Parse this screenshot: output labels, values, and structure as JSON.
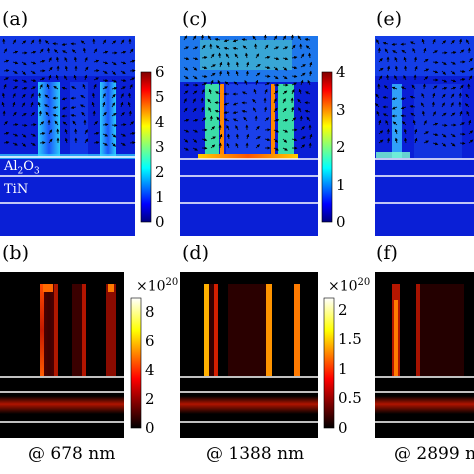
{
  "panels": [
    {
      "id": "a",
      "label": "(a)",
      "kind": "field",
      "wavelength_label": "",
      "materials": [
        "Al2O3",
        "TiN"
      ]
    },
    {
      "id": "c",
      "label": "(c)",
      "kind": "field",
      "wavelength_label": "",
      "materials": []
    },
    {
      "id": "e",
      "label": "(e)",
      "kind": "field",
      "wavelength_label": "",
      "materials": []
    },
    {
      "id": "b",
      "label": "(b)",
      "kind": "heat",
      "wavelength_label": "@ 678 nm"
    },
    {
      "id": "d",
      "label": "(d)",
      "kind": "heat",
      "wavelength_label": "@ 1388 nm"
    },
    {
      "id": "f",
      "label": "(f)",
      "kind": "heat",
      "wavelength_label": "@ 2899 nm"
    }
  ],
  "materials": {
    "al2o3": {
      "base": "Al",
      "sub1": "2",
      "mid": "O",
      "sub2": "3"
    },
    "tin": "TiN"
  },
  "colorbars": [
    {
      "id": "cb-a",
      "colormap": "jet",
      "min": 0,
      "max": 6,
      "ticks": [
        "0",
        "1",
        "2",
        "3",
        "4",
        "5",
        "6"
      ],
      "exponent": ""
    },
    {
      "id": "cb-c",
      "colormap": "jet",
      "min": 0,
      "max": 4,
      "ticks": [
        "0",
        "1",
        "2",
        "3",
        "4"
      ],
      "exponent": ""
    },
    {
      "id": "cb-b",
      "colormap": "hot",
      "min": 0,
      "max": 9,
      "ticks": [
        "0",
        "2",
        "4",
        "6",
        "8"
      ],
      "exponent_base": "×10",
      "exponent_power": "20"
    },
    {
      "id": "cb-d",
      "colormap": "hot",
      "min": 0,
      "max": 2.2,
      "ticks": [
        "0",
        "0.5",
        "1",
        "1.5",
        "2"
      ],
      "exponent_base": "×10",
      "exponent_power": "20"
    }
  ],
  "colors": {
    "field_background": "#0a1fd6",
    "heat_background": "#000000",
    "interface_lines": "#ffffff"
  }
}
